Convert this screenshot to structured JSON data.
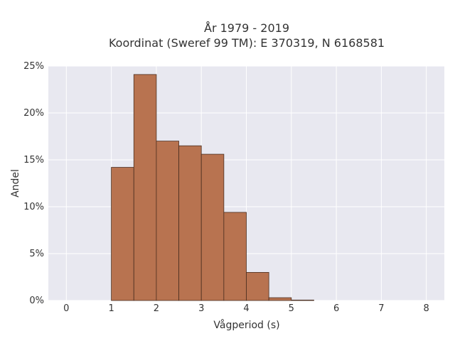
{
  "chart_data": {
    "type": "bar",
    "title_lines": [
      "År 1979 - 2019",
      "Koordinat (Sweref 99 TM): E 370319, N 6168581"
    ],
    "xlabel": "Vågperiod (s)",
    "ylabel": "Andel",
    "xlim": [
      -0.4,
      8.4
    ],
    "ylim": [
      0,
      0.25
    ],
    "x_ticks": [
      0,
      1,
      2,
      3,
      4,
      5,
      6,
      7,
      8
    ],
    "x_tick_labels": [
      "0",
      "1",
      "2",
      "3",
      "4",
      "5",
      "6",
      "7",
      "8"
    ],
    "y_ticks": [
      0,
      0.05,
      0.1,
      0.15,
      0.2,
      0.25
    ],
    "y_tick_labels": [
      "0%",
      "5%",
      "10%",
      "15%",
      "20%",
      "25%"
    ],
    "bin_width": 0.5,
    "bins": [
      {
        "start": 1.0,
        "end": 1.5,
        "value": 0.142
      },
      {
        "start": 1.5,
        "end": 2.0,
        "value": 0.241
      },
      {
        "start": 2.0,
        "end": 2.5,
        "value": 0.17
      },
      {
        "start": 2.5,
        "end": 3.0,
        "value": 0.165
      },
      {
        "start": 3.0,
        "end": 3.5,
        "value": 0.156
      },
      {
        "start": 3.5,
        "end": 4.0,
        "value": 0.094
      },
      {
        "start": 4.0,
        "end": 4.5,
        "value": 0.03
      },
      {
        "start": 4.5,
        "end": 5.0,
        "value": 0.003
      },
      {
        "start": 5.0,
        "end": 5.5,
        "value": 0.0005
      }
    ],
    "grid": true,
    "colors": {
      "bar_fill": "#b87350",
      "bar_stroke": "#4a2e20",
      "plot_bg": "#e8e8f0",
      "grid": "#ffffff"
    }
  }
}
